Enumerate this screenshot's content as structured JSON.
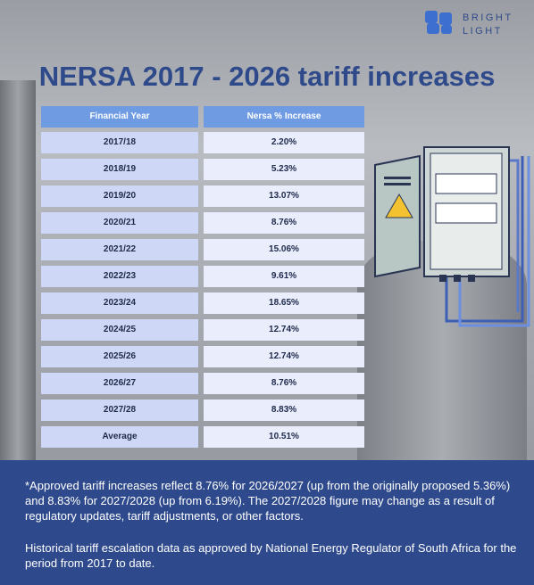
{
  "logo": {
    "line1": "BRIGHT",
    "line2": "LIGHT"
  },
  "title": "NERSA 2017 - 2026 tariff increases",
  "table": {
    "header": [
      "Financial Year",
      "Nersa % Increase"
    ],
    "rows": [
      [
        "2017/18",
        "2.20%"
      ],
      [
        "2018/19",
        "5.23%"
      ],
      [
        "2019/20",
        "13.07%"
      ],
      [
        "2020/21",
        "8.76%"
      ],
      [
        "2021/22",
        "15.06%"
      ],
      [
        "2022/23",
        "9.61%"
      ],
      [
        "2023/24",
        "18.65%"
      ],
      [
        "2024/25",
        "12.74%"
      ],
      [
        "2025/26",
        "12.74%"
      ],
      [
        "2026/27",
        "8.76%"
      ],
      [
        "2027/28",
        "8.83%"
      ],
      [
        "Average",
        "10.51%"
      ]
    ]
  },
  "notes": [
    "*Approved tariff increases reflect 8.76% for 2026/2027 (up from the originally proposed 5.36%) and 8.83% for 2027/2028 (up from 6.19%). The 2027/2028 figure may change as a result of regulatory updates, tariff adjustments, or other factors.",
    "Historical tariff escalation data as approved by National Energy Regulator of South Africa for the period from 2017 to date."
  ]
}
